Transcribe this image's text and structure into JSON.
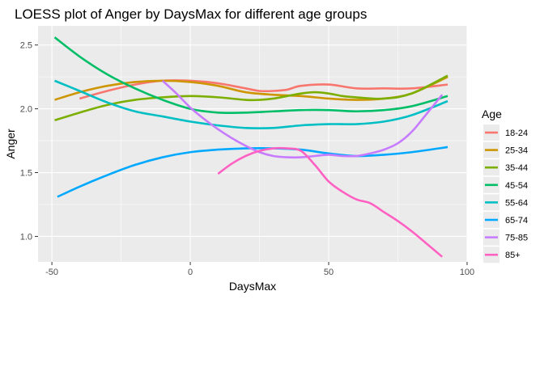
{
  "chart_data": {
    "type": "line",
    "title": "LOESS plot of Anger by DaysMax for different age groups",
    "xlabel": "DaysMax",
    "ylabel": "Anger",
    "xlim": [
      -55,
      100
    ],
    "ylim": [
      0.8,
      2.65
    ],
    "x_ticks": [
      -50,
      0,
      50,
      100
    ],
    "y_ticks": [
      1.0,
      1.5,
      2.0,
      2.5
    ],
    "x_tick_labels": [
      "-50",
      "0",
      "50",
      "100"
    ],
    "y_tick_labels": [
      "1.0",
      "1.5",
      "2.0",
      "2.5"
    ],
    "grid": true,
    "legend": {
      "title": "Age",
      "position": "right"
    },
    "series": [
      {
        "name": "18-24",
        "color": "#F8766D",
        "x": [
          -40,
          -30,
          -20,
          -10,
          0,
          10,
          20,
          25,
          30,
          35,
          40,
          50,
          60,
          70,
          80,
          93
        ],
        "y": [
          2.08,
          2.14,
          2.19,
          2.22,
          2.22,
          2.2,
          2.16,
          2.14,
          2.14,
          2.15,
          2.18,
          2.19,
          2.16,
          2.16,
          2.16,
          2.19
        ]
      },
      {
        "name": "25-34",
        "color": "#CD9600",
        "x": [
          -49,
          -40,
          -30,
          -20,
          -10,
          0,
          10,
          20,
          30,
          40,
          50,
          60,
          70,
          80,
          93
        ],
        "y": [
          2.07,
          2.13,
          2.18,
          2.21,
          2.22,
          2.21,
          2.18,
          2.13,
          2.11,
          2.1,
          2.08,
          2.07,
          2.08,
          2.12,
          2.25
        ]
      },
      {
        "name": "35-44",
        "color": "#7CAE00",
        "x": [
          -49,
          -40,
          -30,
          -20,
          -10,
          0,
          10,
          20,
          25,
          30,
          35,
          40,
          45,
          50,
          55,
          60,
          70,
          80,
          93
        ],
        "y": [
          1.91,
          1.97,
          2.03,
          2.07,
          2.09,
          2.1,
          2.09,
          2.07,
          2.07,
          2.08,
          2.1,
          2.12,
          2.13,
          2.12,
          2.1,
          2.09,
          2.08,
          2.12,
          2.26
        ]
      },
      {
        "name": "45-54",
        "color": "#00BE67",
        "x": [
          -49,
          -40,
          -30,
          -20,
          -10,
          0,
          10,
          20,
          30,
          40,
          50,
          60,
          70,
          80,
          93
        ],
        "y": [
          2.56,
          2.41,
          2.27,
          2.16,
          2.07,
          2.0,
          1.97,
          1.97,
          1.98,
          1.99,
          1.99,
          1.98,
          1.99,
          2.02,
          2.1
        ]
      },
      {
        "name": "55-64",
        "color": "#00BFC4",
        "x": [
          -49,
          -40,
          -30,
          -20,
          -10,
          0,
          10,
          20,
          30,
          40,
          50,
          60,
          70,
          80,
          93
        ],
        "y": [
          2.22,
          2.14,
          2.05,
          1.98,
          1.94,
          1.9,
          1.87,
          1.85,
          1.85,
          1.87,
          1.88,
          1.88,
          1.9,
          1.95,
          2.06
        ]
      },
      {
        "name": "65-74",
        "color": "#00A9FF",
        "x": [
          -48,
          -40,
          -30,
          -20,
          -10,
          0,
          10,
          20,
          30,
          40,
          50,
          60,
          70,
          80,
          93
        ],
        "y": [
          1.31,
          1.39,
          1.48,
          1.56,
          1.62,
          1.66,
          1.68,
          1.69,
          1.69,
          1.68,
          1.65,
          1.63,
          1.64,
          1.66,
          1.7
        ]
      },
      {
        "name": "75-85",
        "color": "#C77CFF",
        "x": [
          -10,
          -5,
          0,
          5,
          10,
          15,
          20,
          25,
          30,
          35,
          40,
          45,
          50,
          55,
          60,
          65,
          70,
          75,
          80,
          85,
          91
        ],
        "y": [
          2.22,
          2.12,
          2.01,
          1.92,
          1.84,
          1.77,
          1.71,
          1.66,
          1.63,
          1.62,
          1.62,
          1.63,
          1.64,
          1.63,
          1.63,
          1.65,
          1.68,
          1.73,
          1.82,
          1.95,
          2.11
        ]
      },
      {
        "name": "85+",
        "color": "#FF61C3",
        "x": [
          10,
          15,
          20,
          25,
          30,
          35,
          40,
          45,
          50,
          55,
          60,
          65,
          70,
          75,
          80,
          85,
          91
        ],
        "y": [
          1.49,
          1.57,
          1.63,
          1.67,
          1.69,
          1.69,
          1.67,
          1.56,
          1.43,
          1.35,
          1.29,
          1.26,
          1.19,
          1.12,
          1.04,
          0.95,
          0.84
        ]
      }
    ]
  }
}
